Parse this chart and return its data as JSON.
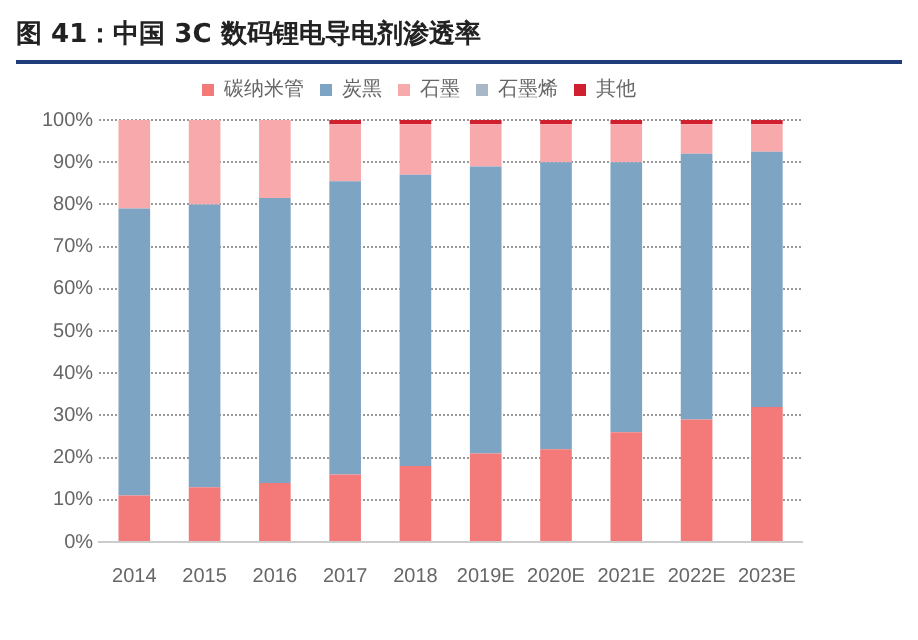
{
  "chart_data": {
    "type": "bar",
    "title": "图 41：中国 3C 数码锂电导电剂渗透率",
    "categories": [
      "2014",
      "2015",
      "2016",
      "2017",
      "2018",
      "2019E",
      "2020E",
      "2021E",
      "2022E",
      "2023E"
    ],
    "stacked": true,
    "series": [
      {
        "name": "碳纳米管",
        "color": "#f47a7a",
        "values": [
          11,
          13,
          14,
          16,
          18,
          21,
          22,
          26,
          29,
          32
        ]
      },
      {
        "name": "炭黑",
        "color": "#7ea4c3",
        "values": [
          68,
          67,
          67.5,
          69.5,
          69,
          68,
          68,
          64,
          63,
          60.5
        ]
      },
      {
        "name": "石墨",
        "color": "#f7a9ab",
        "values": [
          21,
          20,
          18.5,
          13.5,
          12,
          10,
          9,
          9,
          7,
          6.5
        ]
      },
      {
        "name": "石墨烯",
        "color": "#a9b8c6",
        "values": [
          0,
          0,
          0,
          0,
          0,
          0,
          0,
          0,
          0,
          0
        ]
      },
      {
        "name": "其他",
        "color": "#d0202f",
        "values": [
          0,
          0,
          0,
          1,
          1,
          1,
          1,
          1,
          1,
          1
        ]
      }
    ],
    "ylim": [
      0,
      100
    ],
    "yticks": [
      {
        "value": 0,
        "label": "0%"
      },
      {
        "value": 10,
        "label": "10%"
      },
      {
        "value": 20,
        "label": "20%"
      },
      {
        "value": 30,
        "label": "30%"
      },
      {
        "value": 40,
        "label": "40%"
      },
      {
        "value": 50,
        "label": "50%"
      },
      {
        "value": 60,
        "label": "60%"
      },
      {
        "value": 70,
        "label": "70%"
      },
      {
        "value": 80,
        "label": "80%"
      },
      {
        "value": 90,
        "label": "90%"
      },
      {
        "value": 100,
        "label": "100%"
      }
    ],
    "grid": "y",
    "legend": "top"
  }
}
